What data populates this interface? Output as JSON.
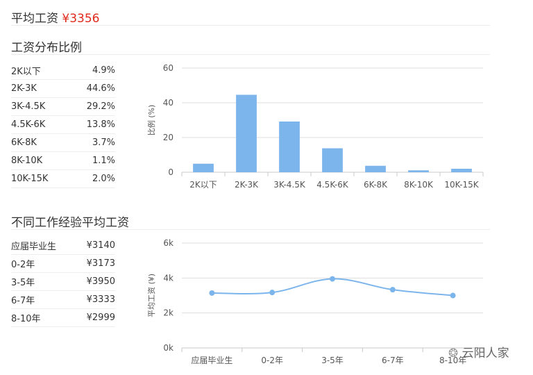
{
  "header": {
    "avg_label": "平均工资",
    "avg_value": "¥3356"
  },
  "dist_section": {
    "title": "工资分布比例",
    "rows": [
      {
        "label": "2K以下",
        "value": "4.9%"
      },
      {
        "label": "2K-3K",
        "value": "44.6%"
      },
      {
        "label": "3K-4.5K",
        "value": "29.2%"
      },
      {
        "label": "4.5K-6K",
        "value": "13.8%"
      },
      {
        "label": "6K-8K",
        "value": "3.7%"
      },
      {
        "label": "8K-10K",
        "value": "1.1%"
      },
      {
        "label": "10K-15K",
        "value": "2.0%"
      }
    ]
  },
  "exp_section": {
    "title": "不同工作经验平均工资",
    "rows": [
      {
        "label": "应届毕业生",
        "value": "¥3140"
      },
      {
        "label": "0-2年",
        "value": "¥3173"
      },
      {
        "label": "3-5年",
        "value": "¥3950"
      },
      {
        "label": "6-7年",
        "value": "¥3333"
      },
      {
        "label": "8-10年",
        "value": "¥2999"
      }
    ]
  },
  "chart_data": [
    {
      "type": "bar",
      "categories": [
        "2K以下",
        "2K-3K",
        "3K-4.5K",
        "4.5K-6K",
        "6K-8K",
        "8K-10K",
        "10K-15K"
      ],
      "values": [
        4.9,
        44.6,
        29.2,
        13.8,
        3.7,
        1.1,
        2.0
      ],
      "ylabel": "比例 (%)",
      "ylim": [
        0,
        60
      ],
      "yticks": [
        0,
        20,
        40,
        60
      ],
      "ytick_labels": [
        "0",
        "20",
        "40",
        "60"
      ],
      "grid": true,
      "color": "#7cb5ec"
    },
    {
      "type": "line",
      "categories": [
        "应届毕业生",
        "0-2年",
        "3-5年",
        "6-7年",
        "8-10年"
      ],
      "values": [
        3140,
        3173,
        3950,
        3333,
        2999
      ],
      "ylabel": "平均工资 (¥)",
      "ylim": [
        0,
        6000
      ],
      "yticks": [
        0,
        2000,
        4000,
        6000
      ],
      "ytick_labels": [
        "0k",
        "2k",
        "4k",
        "6k"
      ],
      "grid": true,
      "smooth": true,
      "color": "#7cb5ec"
    }
  ],
  "watermark": {
    "text": "云阳人家"
  }
}
